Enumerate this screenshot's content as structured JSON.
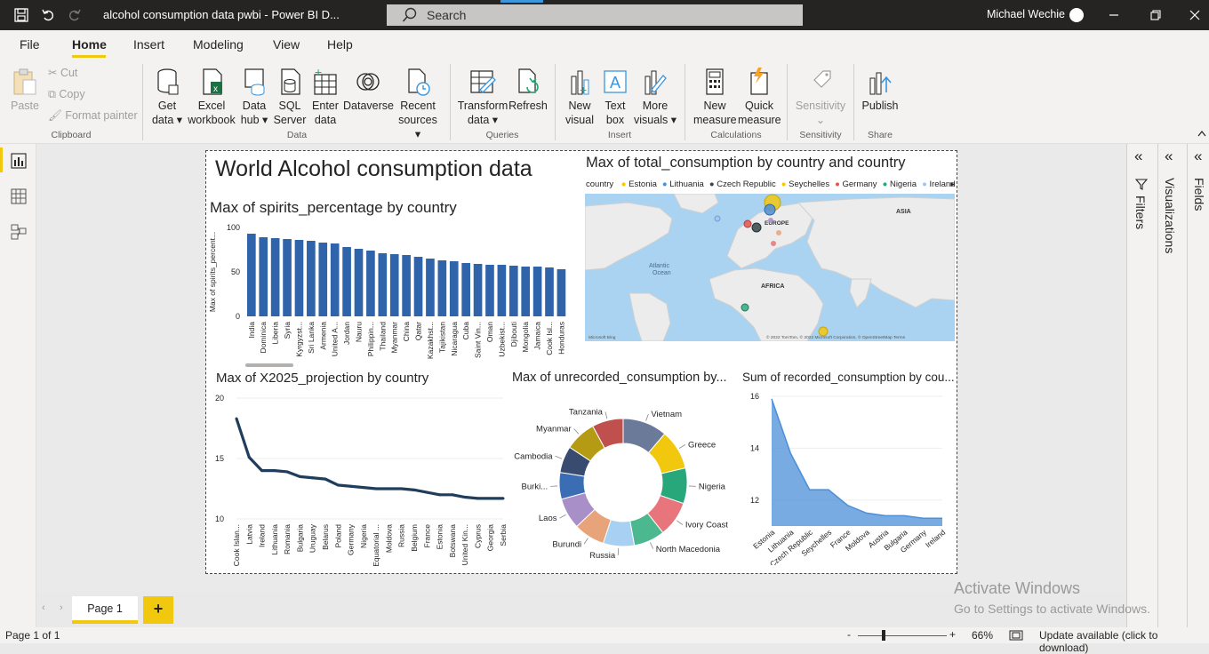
{
  "titlebar": {
    "doc_title": "alcohol consumption data pwbi - Power BI D...",
    "search_placeholder": "Search",
    "user_name": "Michael Wechie"
  },
  "menu": [
    "File",
    "Home",
    "Insert",
    "Modeling",
    "View",
    "Help"
  ],
  "ribbon": {
    "clipboard": {
      "paste": "Paste",
      "cut": "Cut",
      "copy": "Copy",
      "format_painter": "Format painter",
      "group": "Clipboard"
    },
    "data": {
      "get_data": [
        "Get",
        "data"
      ],
      "excel": [
        "Excel",
        "workbook"
      ],
      "data_hub": [
        "Data",
        "hub"
      ],
      "sql": [
        "SQL",
        "Server"
      ],
      "enter": [
        "Enter",
        "data"
      ],
      "dataverse": "Dataverse",
      "recent": [
        "Recent",
        "sources"
      ],
      "group": "Data"
    },
    "queries": {
      "transform": [
        "Transform",
        "data"
      ],
      "refresh": "Refresh",
      "group": "Queries"
    },
    "insert": {
      "new_visual": [
        "New",
        "visual"
      ],
      "text_box": [
        "Text",
        "box"
      ],
      "more_visuals": [
        "More",
        "visuals"
      ],
      "group": "Insert"
    },
    "calculations": {
      "new_measure": [
        "New",
        "measure"
      ],
      "quick_measure": [
        "Quick",
        "measure"
      ],
      "group": "Calculations"
    },
    "sensitivity": {
      "label": "Sensitivity",
      "group": "Sensitivity"
    },
    "share": {
      "publish": "Publish",
      "group": "Share"
    }
  },
  "panes": {
    "filters": "Filters",
    "visualizations": "Visualizations",
    "fields": "Fields"
  },
  "report": {
    "title": "World Alcohol consumption data"
  },
  "bar_visual": {
    "title": "Max of spirits_percentage by country",
    "ylabel": "Max of spirits_percent...",
    "yticks": [
      "100",
      "50",
      "0"
    ]
  },
  "map_visual": {
    "title": "Max of total_consumption by country and country",
    "legend_title": "country",
    "legend": [
      {
        "name": "Estonia",
        "color": "#f2c80f"
      },
      {
        "name": "Lithuania",
        "color": "#4a8fd8"
      },
      {
        "name": "Czech Republic",
        "color": "#374649"
      },
      {
        "name": "Seychelles",
        "color": "#f2c80f"
      },
      {
        "name": "Germany",
        "color": "#e8544d"
      },
      {
        "name": "Nigeria",
        "color": "#27a77a"
      },
      {
        "name": "Ireland",
        "color": "#9fc5f0"
      }
    ],
    "labels": {
      "europe": "EUROPE",
      "asia": "ASIA",
      "africa": "AFRICA",
      "ocean": [
        "Atlantic",
        "Ocean"
      ]
    },
    "bing": "Microsoft Bing",
    "copyright": "© 2022 TomTom, © 2022 Microsoft Corporation, © OpenStreetMap  Terms"
  },
  "line_visual": {
    "title": "Max of X2025_projection by country",
    "yticks": [
      "20",
      "15",
      "10"
    ]
  },
  "donut_visual": {
    "title": "Max of unrecorded_consumption by..."
  },
  "area_visual": {
    "title": "Sum of recorded_consumption by cou...",
    "yticks": [
      "16",
      "14",
      "12"
    ]
  },
  "page_tab": {
    "label": "Page 1",
    "add": "+"
  },
  "watermark": {
    "line1": "Activate Windows",
    "line2": "Go to Settings to activate Windows."
  },
  "status": {
    "page": "Page 1 of 1",
    "zoom": "66%",
    "update": "Update available (click to download)",
    "minus": "-",
    "plus": "+"
  },
  "chart_data": [
    {
      "type": "bar",
      "title": "Max of spirits_percentage by country",
      "ylabel": "Max of spirits_percent...",
      "ylim": [
        0,
        100
      ],
      "categories": [
        "India",
        "Dominica",
        "Liberia",
        "Syria",
        "Kyrgyzst...",
        "Sri Lanka",
        "Armenia",
        "United A...",
        "Jordan",
        "Nauru",
        "Philippin...",
        "Thailand",
        "Myanmar",
        "China",
        "Qatar",
        "Kazakhst...",
        "Tajikistan",
        "Nicaragua",
        "Cuba",
        "Saint Vin...",
        "Oman",
        "Uzbekist...",
        "Djibouti",
        "Mongolia",
        "Jamaica",
        "Cook Isl...",
        "Honduras"
      ],
      "values": [
        93,
        89,
        88,
        87,
        86,
        85,
        83,
        82,
        78,
        76,
        74,
        71,
        70,
        69,
        67,
        65,
        63,
        62,
        60,
        59,
        58,
        58,
        57,
        56,
        56,
        55,
        53
      ],
      "color": "#2f64aa"
    },
    {
      "type": "line",
      "title": "Max of X2025_projection by country",
      "ylim": [
        10,
        20
      ],
      "categories": [
        "Cook Islan...",
        "Latvia",
        "Ireland",
        "Lithuania",
        "Romania",
        "Bulgaria",
        "Uruguay",
        "Belarus",
        "Poland",
        "Germany",
        "Nigeria",
        "Equatorial ...",
        "Moldova",
        "Russia",
        "Belgium",
        "France",
        "Estonia",
        "Botswana",
        "United Kin...",
        "Cyprus",
        "Georgia",
        "Serbia"
      ],
      "values": [
        18.3,
        15.1,
        14.0,
        14.0,
        13.9,
        13.5,
        13.4,
        13.3,
        12.8,
        12.7,
        12.6,
        12.5,
        12.5,
        12.5,
        12.4,
        12.2,
        12.0,
        12.0,
        11.8,
        11.7,
        11.7,
        11.7
      ],
      "color": "#1f3d5c"
    },
    {
      "type": "pie",
      "title": "Max of unrecorded_consumption by...",
      "donut": true,
      "categories": [
        "Vietnam",
        "Greece",
        "Nigeria",
        "Ivory Coast",
        "North Macedonia",
        "Russia",
        "Burundi",
        "Laos",
        "Burki...",
        "Cambodia",
        "Myanmar",
        "Tanzania"
      ],
      "values": [
        10,
        9,
        8,
        8,
        7,
        7,
        7,
        7,
        6,
        6,
        7,
        7
      ],
      "colors": [
        "#6b7a99",
        "#f2c80f",
        "#27a77a",
        "#e8747c",
        "#4cb88f",
        "#a8d0f2",
        "#e7a47a",
        "#a88fc7",
        "#3a6db3",
        "#394b6e",
        "#b59a14",
        "#c0504d"
      ]
    },
    {
      "type": "area",
      "title": "Sum of recorded_consumption by cou...",
      "ylim": [
        11,
        16
      ],
      "categories": [
        "Estonia",
        "Lithuania",
        "Czech Republic",
        "Seychelles",
        "France",
        "Moldova",
        "Austria",
        "Bulgaria",
        "Germany",
        "Ireland"
      ],
      "values": [
        15.9,
        13.8,
        12.4,
        12.4,
        11.8,
        11.5,
        11.4,
        11.4,
        11.3,
        11.3
      ],
      "color": "#4a8fd8"
    }
  ]
}
